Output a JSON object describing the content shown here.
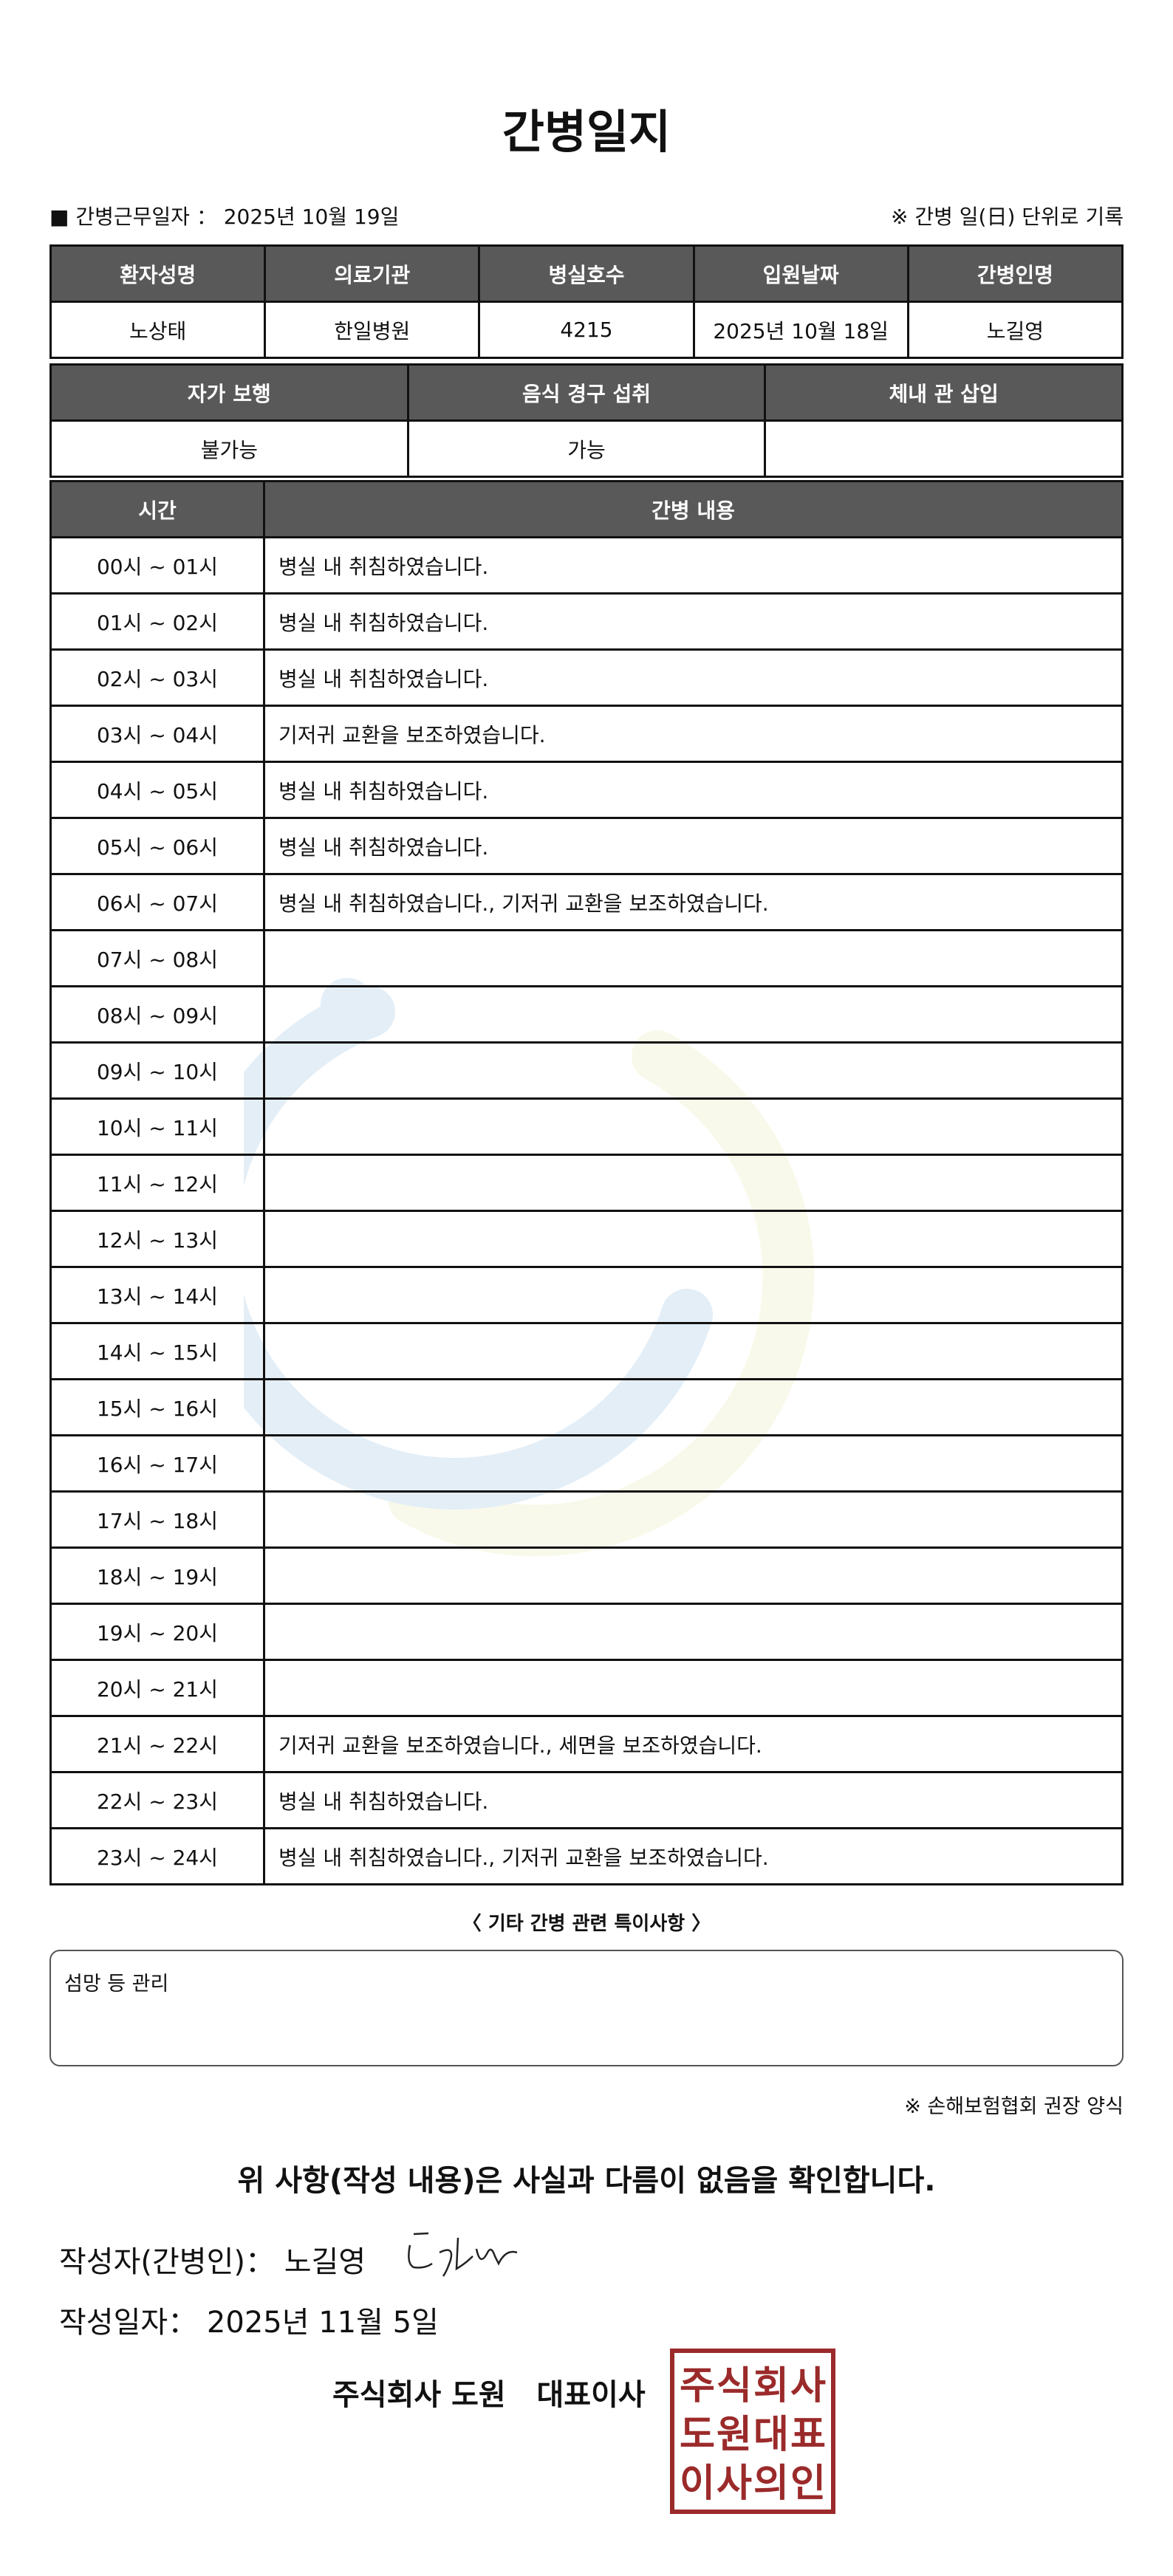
{
  "title": "간병일지",
  "meta": {
    "work_date_label": "■ 간병근무일자 ：",
    "work_date": "2025년 10월 19일",
    "note": "※ 간병 일(日) 단위로 기록"
  },
  "patient_table": {
    "headers": [
      "환자성명",
      "의료기관",
      "병실호수",
      "입원날짜",
      "간병인명"
    ],
    "values": [
      "노상태",
      "한일병원",
      "4215",
      "2025년 10월 18일",
      "노길영"
    ]
  },
  "status_table": {
    "headers": [
      "자가 보행",
      "음식 경구 섭취",
      "체내 관 삽입"
    ],
    "values": [
      "불가능",
      "가능",
      ""
    ]
  },
  "log_table": {
    "headers": [
      "시간",
      "간병 내용"
    ],
    "rows": [
      [
        "00시 ~ 01시",
        "병실 내 취침하였습니다."
      ],
      [
        "01시 ~ 02시",
        "병실 내 취침하였습니다."
      ],
      [
        "02시 ~ 03시",
        "병실 내 취침하였습니다."
      ],
      [
        "03시 ~ 04시",
        "기저귀 교환을 보조하였습니다."
      ],
      [
        "04시 ~ 05시",
        "병실 내 취침하였습니다."
      ],
      [
        "05시 ~ 06시",
        "병실 내 취침하였습니다."
      ],
      [
        "06시 ~ 07시",
        "병실 내 취침하였습니다., 기저귀 교환을 보조하였습니다."
      ],
      [
        "07시 ~ 08시",
        ""
      ],
      [
        "08시 ~ 09시",
        ""
      ],
      [
        "09시 ~ 10시",
        ""
      ],
      [
        "10시 ~ 11시",
        ""
      ],
      [
        "11시 ~ 12시",
        ""
      ],
      [
        "12시 ~ 13시",
        ""
      ],
      [
        "13시 ~ 14시",
        ""
      ],
      [
        "14시 ~ 15시",
        ""
      ],
      [
        "15시 ~ 16시",
        ""
      ],
      [
        "16시 ~ 17시",
        ""
      ],
      [
        "17시 ~ 18시",
        ""
      ],
      [
        "18시 ~ 19시",
        ""
      ],
      [
        "19시 ~ 20시",
        ""
      ],
      [
        "20시 ~ 21시",
        ""
      ],
      [
        "21시 ~ 22시",
        "기저귀 교환을 보조하였습니다., 세면을 보조하였습니다."
      ],
      [
        "22시 ~ 23시",
        "병실 내 취침하였습니다."
      ],
      [
        "23시 ~ 24시",
        "병실 내 취침하였습니다., 기저귀 교환을 보조하였습니다."
      ]
    ]
  },
  "notes": {
    "title": "〈 기타 간병 관련 특이사항 〉",
    "content": "섬망 등 관리"
  },
  "form_note": "※ 손해보험협회 권장 양식",
  "confirm": "위 사항(작성 내용)은 사실과 다름이 없음을 확인합니다.",
  "author": {
    "label": "작성자(간병인)：",
    "name": "노길영"
  },
  "written_date": {
    "label": "작성일자：",
    "value": "2025년 11월 5일"
  },
  "company": "주식회사 도원   대표이사",
  "stamp_text": "주식회사도원대표이사의인",
  "colors": {
    "header_bg": "#595959",
    "stamp": "#9b2a2a",
    "watermark_blue": "#2f86c8",
    "watermark_yellow": "#d6d96a"
  }
}
